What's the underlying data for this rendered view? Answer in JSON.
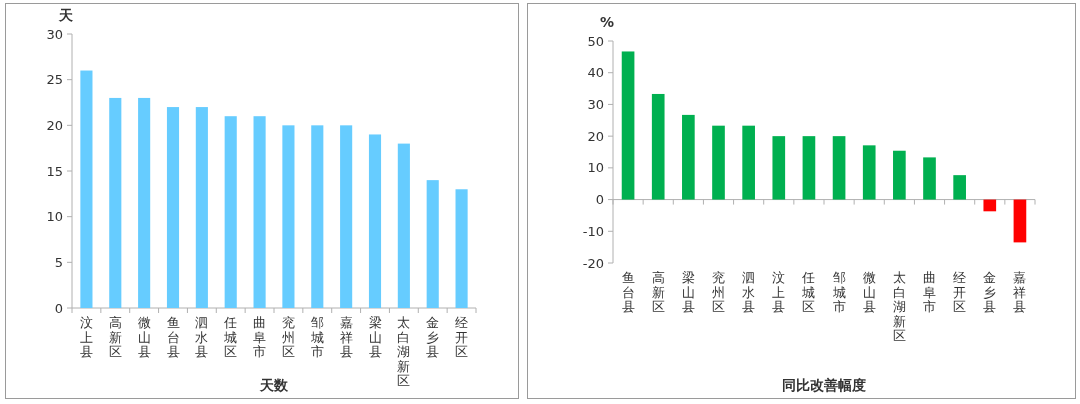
{
  "chart_data": [
    {
      "type": "bar",
      "ylabel": "天",
      "xlabel": "天数",
      "categories": [
        "汶上县",
        "高新区",
        "微山县",
        "鱼台县",
        "泗水县",
        "任城区",
        "曲阜市",
        "兖州区",
        "邹城市",
        "嘉祥县",
        "梁山县",
        "太白湖新区",
        "金乡县",
        "经开区"
      ],
      "values": [
        26,
        23,
        23,
        22,
        22,
        21,
        21,
        20,
        20,
        20,
        19,
        18,
        14,
        13
      ],
      "color": "#66ccff",
      "ylim": [
        0,
        30
      ],
      "yticks": [
        0,
        5,
        10,
        15,
        20,
        25,
        30
      ]
    },
    {
      "type": "bar",
      "ylabel": "%",
      "xlabel": "同比改善幅度",
      "categories": [
        "鱼台县",
        "高新区",
        "梁山县",
        "兖州区",
        "泗水县",
        "汶上县",
        "任城区",
        "邹城市",
        "微山县",
        "太白湖新区",
        "曲阜市",
        "经开区",
        "金乡县",
        "嘉祥县"
      ],
      "values": [
        46.7,
        33.3,
        26.7,
        23.3,
        23.3,
        20,
        20,
        20,
        17.1,
        15.4,
        13.3,
        7.7,
        -3.7,
        -13.5
      ],
      "colors": [
        "#00b050",
        "#00b050",
        "#00b050",
        "#00b050",
        "#00b050",
        "#00b050",
        "#00b050",
        "#00b050",
        "#00b050",
        "#00b050",
        "#00b050",
        "#00b050",
        "#ff0000",
        "#ff0000"
      ],
      "ylim": [
        -20,
        50
      ],
      "yticks": [
        -20,
        -10,
        0,
        10,
        20,
        30,
        40,
        50
      ]
    }
  ]
}
